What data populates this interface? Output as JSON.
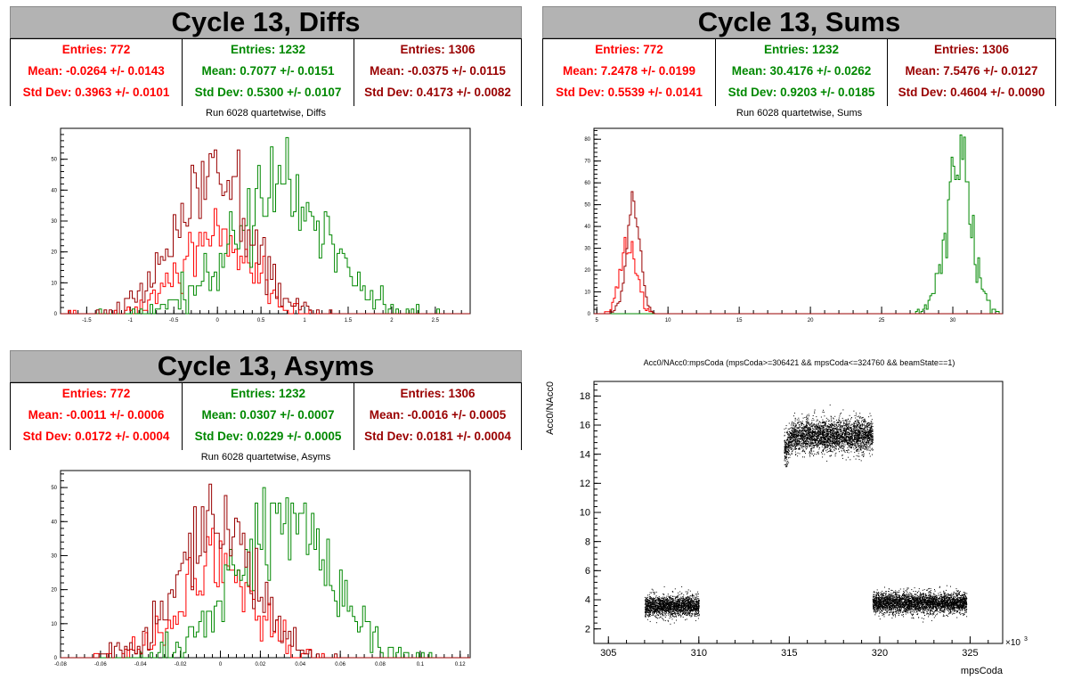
{
  "panels": {
    "diffs": {
      "title": "Cycle 13, Diffs",
      "subtitle": "Run 6028 quartetwise, Diffs",
      "stats": [
        {
          "entries": "Entries: 772",
          "mean": "Mean: -0.0264 +/- 0.0143",
          "std": "Std Dev: 0.3963 +/- 0.0101",
          "color": "#ff0000"
        },
        {
          "entries": "Entries: 1232",
          "mean": "Mean: 0.7077 +/- 0.0151",
          "std": "Std Dev: 0.5300 +/- 0.0107",
          "color": "#008800"
        },
        {
          "entries": "Entries: 1306",
          "mean": "Mean: -0.0375 +/- 0.0115",
          "std": "Std Dev: 0.4173 +/- 0.0082",
          "color": "#990000"
        }
      ]
    },
    "sums": {
      "title": "Cycle 13, Sums",
      "subtitle": "Run 6028 quartetwise, Sums",
      "stats": [
        {
          "entries": "Entries: 772",
          "mean": "Mean: 7.2478 +/- 0.0199",
          "std": "Std Dev: 0.5539 +/- 0.0141",
          "color": "#ff0000"
        },
        {
          "entries": "Entries: 1232",
          "mean": "Mean: 30.4176 +/- 0.0262",
          "std": "Std Dev: 0.9203 +/- 0.0185",
          "color": "#008800"
        },
        {
          "entries": "Entries: 1306",
          "mean": "Mean: 7.5476 +/- 0.0127",
          "std": "Std Dev: 0.4604 +/- 0.0090",
          "color": "#990000"
        }
      ]
    },
    "asyms": {
      "title": "Cycle 13, Asyms",
      "subtitle": "Run 6028 quartetwise, Asyms",
      "stats": [
        {
          "entries": "Entries: 772",
          "mean": "Mean: -0.0011 +/- 0.0006",
          "std": "Std Dev: 0.0172 +/- 0.0004",
          "color": "#ff0000"
        },
        {
          "entries": "Entries: 1232",
          "mean": "Mean: 0.0307 +/- 0.0007",
          "std": "Std Dev: 0.0229 +/- 0.0005",
          "color": "#008800"
        },
        {
          "entries": "Entries: 1306",
          "mean": "Mean: -0.0016 +/- 0.0005",
          "std": "Std Dev: 0.0181 +/- 0.0004",
          "color": "#990000"
        }
      ]
    },
    "scatter": {
      "title": "Acc0/NAcc0:mpsCoda (mpsCoda>=306421 && mpsCoda<=324760 && beamState==1)"
    }
  },
  "chart_data": [
    {
      "id": "diffs",
      "type": "histogram",
      "xlim": [
        -1.8,
        2.9
      ],
      "ylim": [
        0,
        60
      ],
      "xticks": [
        -1.5,
        -1,
        -0.5,
        0,
        0.5,
        1,
        1.5,
        2,
        2.5
      ],
      "xtick_labels": [
        "-1.5",
        "-1",
        "-0.5",
        "0",
        "0.5",
        "1",
        "1.5",
        "2",
        "2.5"
      ],
      "yticks": [
        0,
        10,
        20,
        30,
        40,
        50
      ],
      "ytick_labels": [
        "0",
        "10",
        "20",
        "30",
        "40",
        "50"
      ],
      "series": [
        {
          "color": "#ff0000",
          "mean": -0.0264,
          "std": 0.3963,
          "entries": 772,
          "peak": 34
        },
        {
          "color": "#008800",
          "mean": 0.7077,
          "std": 0.53,
          "entries": 1232,
          "peak": 57
        },
        {
          "color": "#990000",
          "mean": -0.0375,
          "std": 0.4173,
          "entries": 1306,
          "peak": 53
        }
      ]
    },
    {
      "id": "sums",
      "type": "histogram",
      "xlim": [
        4.8,
        33.5
      ],
      "ylim": [
        0,
        85
      ],
      "xticks": [
        5,
        10,
        15,
        20,
        25,
        30
      ],
      "xtick_labels": [
        "5",
        "10",
        "15",
        "20",
        "25",
        "30"
      ],
      "yticks": [
        0,
        10,
        20,
        30,
        40,
        50,
        60,
        70,
        80
      ],
      "ytick_labels": [
        "0",
        "10",
        "20",
        "30",
        "40",
        "50",
        "60",
        "70",
        "80"
      ],
      "series": [
        {
          "color": "#ff0000",
          "mean": 7.2478,
          "std": 0.5539,
          "entries": 772,
          "peak": 35
        },
        {
          "color": "#008800",
          "mean": 30.4176,
          "std": 0.9203,
          "entries": 1232,
          "peak": 82
        },
        {
          "color": "#990000",
          "mean": 7.5476,
          "std": 0.4604,
          "entries": 1306,
          "peak": 56
        }
      ]
    },
    {
      "id": "asyms",
      "type": "histogram",
      "xlim": [
        -0.08,
        0.125
      ],
      "ylim": [
        0,
        55
      ],
      "xticks": [
        -0.08,
        -0.06,
        -0.04,
        -0.02,
        0,
        0.02,
        0.04,
        0.06,
        0.08,
        0.1,
        0.12
      ],
      "xtick_labels": [
        "-0.08",
        "-0.06",
        "-0.04",
        "-0.02",
        "0",
        "0.02",
        "0.04",
        "0.06",
        "0.08",
        "0.1",
        "0.12"
      ],
      "yticks": [
        0,
        10,
        20,
        30,
        40,
        50
      ],
      "ytick_labels": [
        "0",
        "10",
        "20",
        "30",
        "40",
        "50"
      ],
      "series": [
        {
          "color": "#ff0000",
          "mean": -0.0011,
          "std": 0.0172,
          "entries": 772,
          "peak": 38
        },
        {
          "color": "#008800",
          "mean": 0.0307,
          "std": 0.0229,
          "entries": 1232,
          "peak": 50
        },
        {
          "color": "#990000",
          "mean": -0.0016,
          "std": 0.0181,
          "entries": 1306,
          "peak": 51
        }
      ]
    },
    {
      "id": "scatter",
      "type": "scatter",
      "title": "Acc0/NAcc0:mpsCoda (mpsCoda>=306421 && mpsCoda<=324760 && beamState==1)",
      "xlabel": "mpsCoda",
      "ylabel": "Acc0/NAcc0",
      "xexp": "×10",
      "xexp_power": "3",
      "xlim": [
        304.2,
        326.8
      ],
      "ylim": [
        1,
        19
      ],
      "xticks": [
        305,
        310,
        315,
        320,
        325
      ],
      "xtick_labels": [
        "305",
        "310",
        "315",
        "320",
        "325"
      ],
      "yticks": [
        2,
        4,
        6,
        8,
        10,
        12,
        14,
        16,
        18
      ],
      "ytick_labels": [
        "2",
        "4",
        "6",
        "8",
        "10",
        "12",
        "14",
        "16",
        "18"
      ],
      "clusters": [
        {
          "x_range": [
            307,
            310
          ],
          "y_center": 3.6,
          "y_spread": 0.35
        },
        {
          "x_range": [
            314.7,
            319.6
          ],
          "y_center": 15.3,
          "y_spread": 0.55
        },
        {
          "x_range": [
            319.6,
            324.8
          ],
          "y_center": 3.8,
          "y_spread": 0.35
        }
      ]
    }
  ]
}
